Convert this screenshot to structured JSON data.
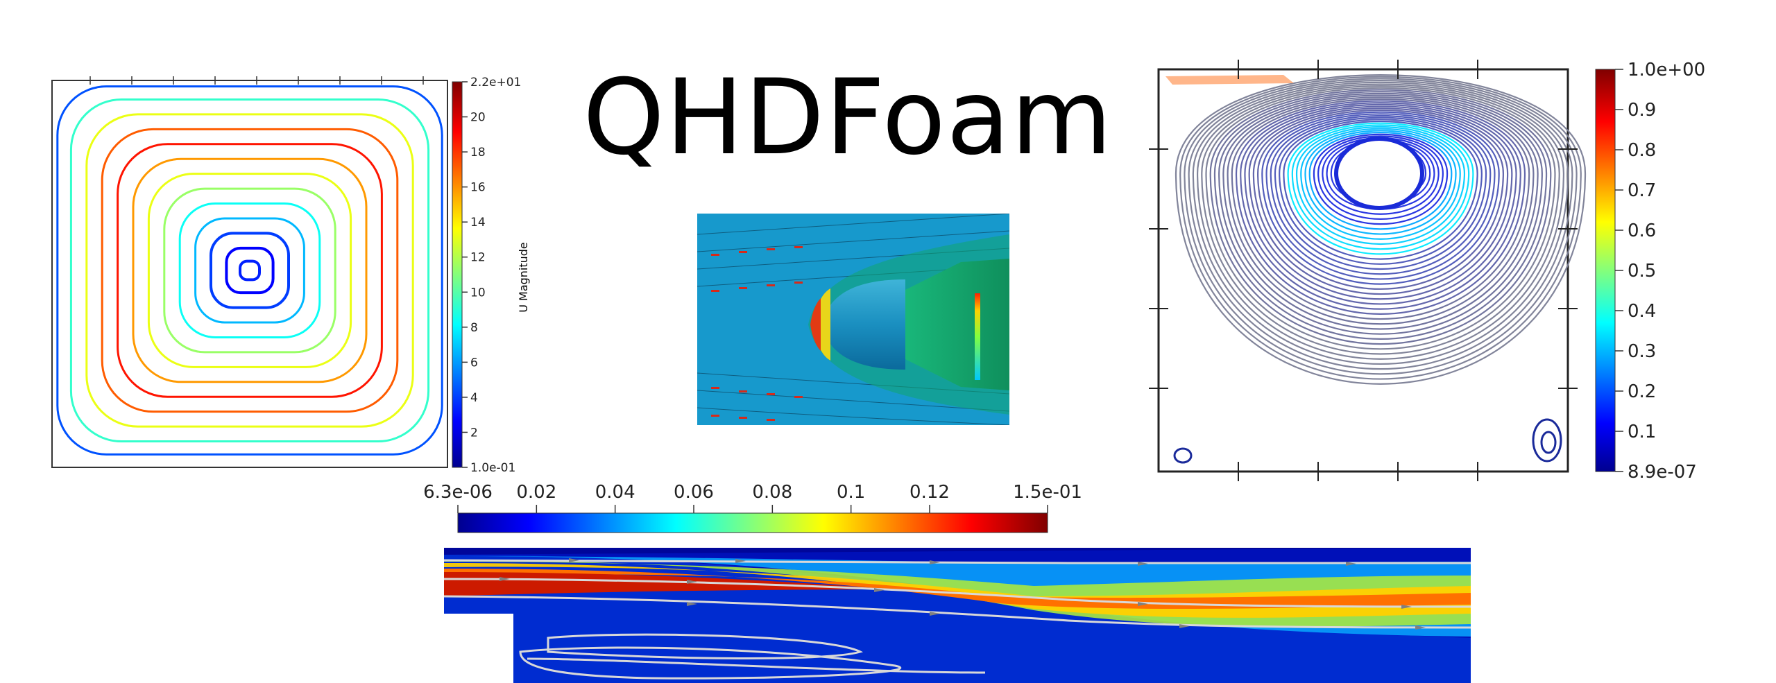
{
  "title": "QHDFoam",
  "panel_left": {
    "colorbar": {
      "label": "U Magnitude",
      "ticks": [
        "2.2e+01",
        "20",
        "18",
        "16",
        "14",
        "12",
        "10",
        "8",
        "6",
        "4",
        "2",
        "1.0e-01"
      ]
    }
  },
  "panel_right": {
    "colorbar": {
      "ticks": [
        "1.0e+00",
        "0.9",
        "0.8",
        "0.7",
        "0.6",
        "0.5",
        "0.4",
        "0.3",
        "0.2",
        "0.1",
        "8.9e-07"
      ]
    }
  },
  "bottom_colorbar": {
    "ticks": [
      "6.3e-06",
      "0.02",
      "0.04",
      "0.06",
      "0.08",
      "0.1",
      "0.12",
      "1.5e-01"
    ]
  },
  "colors": {
    "jet": [
      "#00008f",
      "#0000ff",
      "#0080ff",
      "#00ffff",
      "#80ff80",
      "#ffff00",
      "#ff8000",
      "#ff0000",
      "#800000"
    ]
  }
}
